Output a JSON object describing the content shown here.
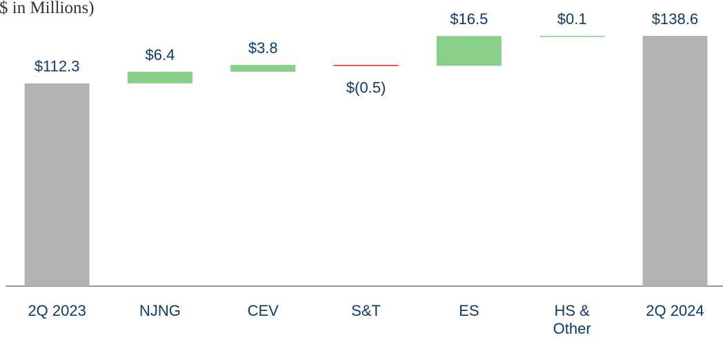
{
  "chart_data": {
    "type": "waterfall",
    "title": "$ in Millions)",
    "categories": [
      "2Q 2023",
      "NJNG",
      "CEV",
      "S&T",
      "ES",
      "HS & Other",
      "2Q 2024"
    ],
    "values": [
      112.3,
      6.4,
      3.8,
      -0.5,
      16.5,
      0.1,
      138.6
    ],
    "value_labels": [
      "$112.3",
      "$6.4",
      "$3.8",
      "$(0.5)",
      "$16.5",
      "$0.1",
      "$138.6"
    ],
    "measure": [
      "total",
      "relative",
      "relative",
      "relative",
      "relative",
      "relative",
      "total"
    ],
    "colors": {
      "total": "#b3b3b3",
      "increase": "#88d08a",
      "decrease": "#e8191c"
    }
  }
}
